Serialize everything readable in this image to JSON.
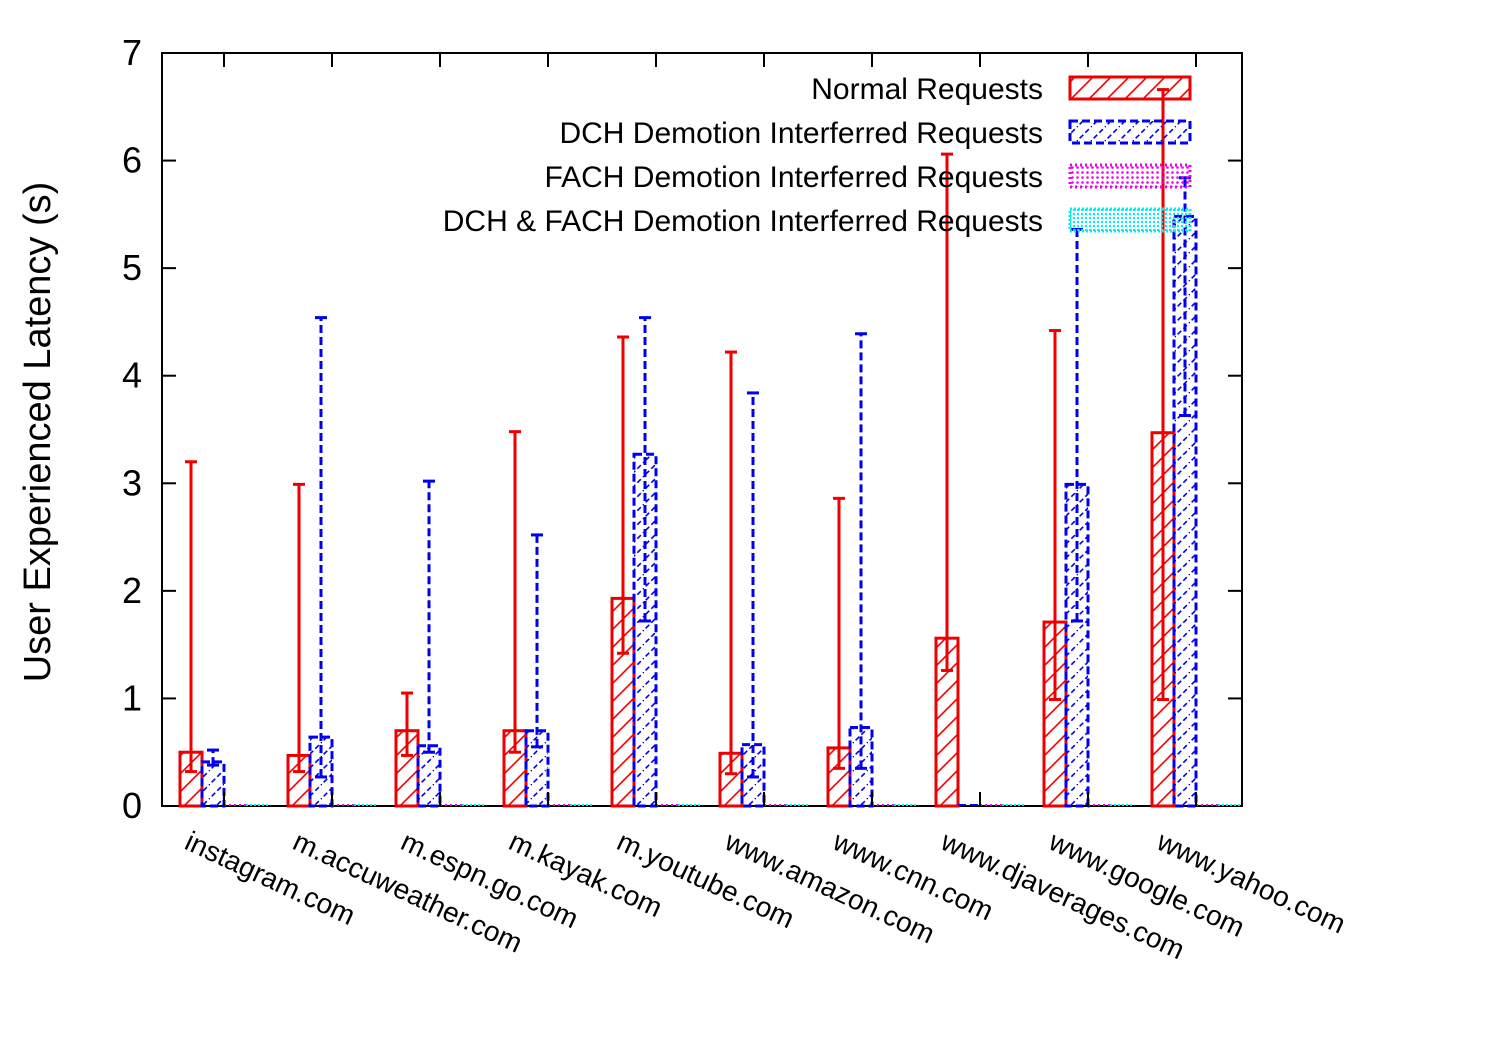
{
  "chart_data": {
    "type": "bar",
    "ylabel": "User Experienced Latency (s)",
    "ylim": [
      0,
      7
    ],
    "yticks": [
      0,
      1,
      2,
      3,
      4,
      5,
      6,
      7
    ],
    "legend_position": "top-right",
    "categories": [
      "instagram.com",
      "m.accuweather.com",
      "m.espn.go.com",
      "m.kayak.com",
      "m.youtube.com",
      "www.amazon.com",
      "www.cnn.com",
      "www.djaverages.com",
      "www.google.com",
      "www.yahoo.com"
    ],
    "series": [
      {
        "name": "Normal Requests",
        "color": "#ee0000",
        "pattern": "hatch-sparse",
        "values": [
          0.5,
          0.47,
          0.7,
          0.7,
          1.93,
          0.49,
          0.54,
          1.56,
          1.71,
          3.47
        ],
        "err_low": [
          0.32,
          0.32,
          0.47,
          0.5,
          1.42,
          0.3,
          0.35,
          1.26,
          0.99,
          0.99
        ],
        "err_high": [
          3.2,
          2.99,
          1.05,
          3.48,
          4.36,
          4.22,
          2.86,
          6.06,
          4.42,
          6.66
        ]
      },
      {
        "name": "DCH Demotion Interferred Requests",
        "color": "#0000ee",
        "pattern": "hatch-dense",
        "values": [
          0.41,
          0.64,
          0.56,
          0.7,
          3.27,
          0.57,
          0.73,
          0,
          2.99,
          5.48
        ],
        "err_low": [
          0.38,
          0.27,
          0.5,
          0.55,
          1.72,
          0.27,
          0.35,
          0,
          1.72,
          3.63
        ],
        "err_high": [
          0.52,
          4.54,
          3.02,
          2.52,
          4.54,
          3.84,
          4.39,
          0,
          5.36,
          5.84
        ]
      },
      {
        "name": "FACH Demotion Interferred Requests",
        "color": "#ee00ee",
        "pattern": "dots",
        "values": [
          0,
          0,
          0,
          0,
          0,
          0,
          0,
          0,
          0,
          0
        ]
      },
      {
        "name": "DCH & FACH Demotion Interferred Requests",
        "color": "#00eeee",
        "pattern": "dots-dense",
        "values": [
          0,
          0,
          0,
          0,
          0,
          0,
          0,
          0,
          0,
          0
        ]
      }
    ]
  }
}
